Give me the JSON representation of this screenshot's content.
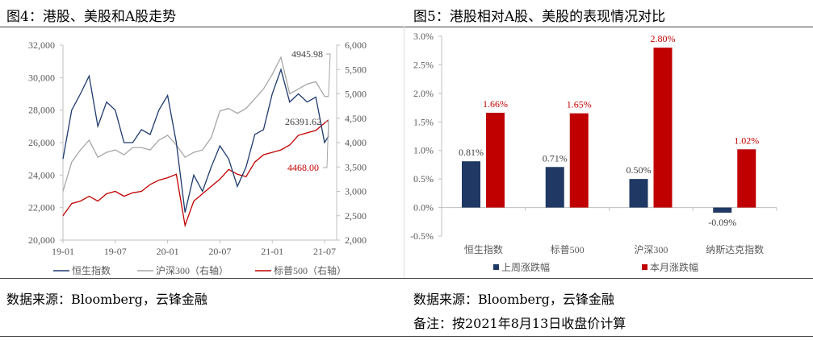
{
  "left": {
    "title": "图4：港股、美股和A股走势",
    "source": "数据来源：Bloomberg，云锋金融"
  },
  "right": {
    "title": "图5：港股相对A股、美股的表现情况对比",
    "source": "数据来源：Bloomberg，云锋金融",
    "note": "备注：按2021年8月13日收盘价计算"
  },
  "chart_data": [
    {
      "type": "line",
      "x_ticks": [
        "19-01",
        "19-07",
        "20-01",
        "20-07",
        "21-01",
        "21-07"
      ],
      "x": [
        "2019-01",
        "2019-02",
        "2019-03",
        "2019-04",
        "2019-05",
        "2019-06",
        "2019-07",
        "2019-08",
        "2019-09",
        "2019-10",
        "2019-11",
        "2019-12",
        "2020-01",
        "2020-02",
        "2020-03",
        "2020-04",
        "2020-05",
        "2020-06",
        "2020-07",
        "2020-08",
        "2020-09",
        "2020-10",
        "2020-11",
        "2020-12",
        "2021-01",
        "2021-02",
        "2021-03",
        "2021-04",
        "2021-05",
        "2021-06",
        "2021-07",
        "2021-08-13"
      ],
      "left_ylim": [
        20000,
        32000
      ],
      "left_yticks": [
        "20,000",
        "22,000",
        "24,000",
        "26,000",
        "28,000",
        "30,000",
        "32,000"
      ],
      "right_ylim": [
        2000,
        6000
      ],
      "right_yticks": [
        "2,000",
        "2,500",
        "3,000",
        "3,500",
        "4,000",
        "4,500",
        "5,000",
        "5,500",
        "6,000"
      ],
      "series": [
        {
          "name": "恒生指数",
          "axis": "left",
          "color": "#1f3a6e",
          "values": [
            25000,
            28000,
            29000,
            30100,
            27000,
            28500,
            28000,
            26000,
            26000,
            26800,
            26500,
            28000,
            28900,
            26000,
            21700,
            24000,
            23000,
            24500,
            25800,
            25000,
            23300,
            24500,
            26500,
            26800,
            29000,
            30500,
            28500,
            29000,
            28500,
            28800,
            26000,
            26391.62
          ]
        },
        {
          "name": "沪深300（右轴）",
          "axis": "right",
          "color": "#a6a6a6",
          "values": [
            3000,
            3600,
            3850,
            4050,
            3700,
            3800,
            3850,
            3750,
            3900,
            3900,
            3850,
            4050,
            4150,
            3950,
            3700,
            3800,
            3850,
            4100,
            4650,
            4700,
            4600,
            4700,
            4900,
            5100,
            5400,
            5750,
            5000,
            5100,
            5200,
            5250,
            4950,
            4945.98
          ]
        },
        {
          "name": "标普500（右轴）",
          "axis": "right",
          "color": "#c00000",
          "values": [
            2500,
            2750,
            2800,
            2900,
            2800,
            2950,
            3000,
            2900,
            2970,
            3000,
            3140,
            3230,
            3280,
            3350,
            2300,
            2800,
            2950,
            3100,
            3250,
            3450,
            3350,
            3300,
            3600,
            3750,
            3800,
            3850,
            3950,
            4150,
            4200,
            4250,
            4400,
            4468
          ]
        }
      ],
      "annotations": [
        {
          "text": "4945.98",
          "color": "#404040"
        },
        {
          "text": "26391.62",
          "color": "#404040"
        },
        {
          "text": "4468.00",
          "color": "#c00000"
        }
      ],
      "legend_position": "bottom"
    },
    {
      "type": "bar",
      "categories": [
        "恒生指数",
        "标普500",
        "沪深300",
        "纳斯达克指数"
      ],
      "ylim": [
        -0.5,
        3.0
      ],
      "yticks": [
        "-0.5%",
        "0.0%",
        "0.5%",
        "1.0%",
        "1.5%",
        "2.0%",
        "2.5%",
        "3.0%"
      ],
      "series": [
        {
          "name": "上周涨跌幅",
          "color": "#1f3864",
          "values": [
            0.81,
            0.71,
            0.5,
            -0.09
          ],
          "labels": [
            "0.81%",
            "0.71%",
            "0.50%",
            "-0.09%"
          ],
          "label_color": "#404040"
        },
        {
          "name": "本月涨跌幅",
          "color": "#c00000",
          "values": [
            1.66,
            1.65,
            2.8,
            1.02
          ],
          "labels": [
            "1.66%",
            "1.65%",
            "2.80%",
            "1.02%"
          ],
          "label_color": "#c00000"
        }
      ],
      "legend_position": "bottom"
    }
  ]
}
